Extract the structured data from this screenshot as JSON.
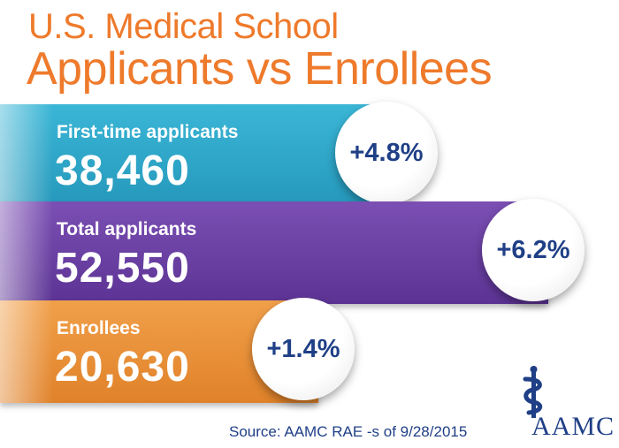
{
  "title": {
    "line1": "U.S. Medical School",
    "line2": "Applicants vs Enrollees"
  },
  "colors": {
    "title": "#ee7a2b",
    "first_time_bar": "#2aa3c6",
    "total_bar": "#6a3fa2",
    "enrollees_bar": "#e98f33",
    "badge_text": "#1f3f86"
  },
  "chart_data": {
    "type": "bar",
    "orientation": "horizontal",
    "categories": [
      "First-time applicants",
      "Total applicants",
      "Enrollees"
    ],
    "values": [
      38460,
      52550,
      20630
    ],
    "values_display": [
      "38,460",
      "52,550",
      "20,630"
    ],
    "changes": [
      "+4.8%",
      "+6.2%",
      "+1.4%"
    ],
    "title": "U.S. Medical School Applicants vs Enrollees"
  },
  "source": "Source: AAMC RAE  -s of 9/28/2015",
  "logo": {
    "text": "AAMC",
    "icon": "caduceus-icon"
  }
}
